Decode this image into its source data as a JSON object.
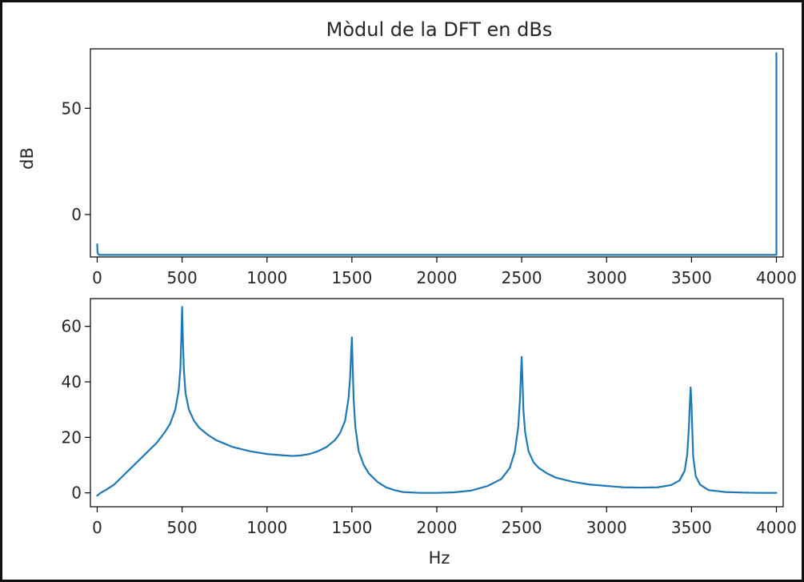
{
  "colors": {
    "line": "#1f77b4",
    "background": "#ffffff",
    "frame": "#000000"
  },
  "chart_data": [
    {
      "type": "line",
      "title": "Mòdul de la DFT en dBs",
      "xlabel": "",
      "ylabel": "dB",
      "xlim": [
        -40,
        4040
      ],
      "ylim": [
        -20,
        78
      ],
      "xticks": [
        0,
        500,
        1000,
        1500,
        2000,
        2500,
        3000,
        3500,
        4000
      ],
      "yticks": [
        0,
        50
      ],
      "grid": false,
      "series": [
        {
          "x": [
            0,
            2,
            10,
            4000,
            4000
          ],
          "y": [
            -14,
            -18,
            -19,
            -19,
            76
          ]
        }
      ]
    },
    {
      "type": "line",
      "title": "",
      "xlabel": "Hz",
      "ylabel": "",
      "xlim": [
        -40,
        4040
      ],
      "ylim": [
        -5,
        70
      ],
      "xticks": [
        0,
        500,
        1000,
        1500,
        2000,
        2500,
        3000,
        3500,
        4000
      ],
      "yticks": [
        0,
        20,
        40,
        60
      ],
      "grid": false,
      "series": [
        {
          "x": [
            0,
            20,
            50,
            100,
            150,
            200,
            250,
            300,
            350,
            400,
            430,
            460,
            480,
            490,
            495,
            500,
            505,
            510,
            520,
            540,
            570,
            600,
            650,
            700,
            800,
            900,
            1000,
            1100,
            1150,
            1200,
            1250,
            1300,
            1350,
            1400,
            1430,
            1460,
            1480,
            1490,
            1495,
            1500,
            1505,
            1510,
            1520,
            1540,
            1570,
            1600,
            1650,
            1700,
            1750,
            1800,
            1900,
            2000,
            2100,
            2200,
            2300,
            2380,
            2430,
            2460,
            2480,
            2490,
            2495,
            2500,
            2505,
            2510,
            2520,
            2540,
            2570,
            2600,
            2650,
            2700,
            2800,
            2900,
            3000,
            3100,
            3200,
            3300,
            3380,
            3430,
            3460,
            3475,
            3485,
            3490,
            3495,
            3500,
            3505,
            3510,
            3525,
            3550,
            3600,
            3700,
            3800,
            3900,
            4000
          ],
          "y": [
            -1,
            0,
            1,
            3,
            6,
            9,
            12,
            15,
            18,
            22,
            25,
            30,
            37,
            45,
            55,
            67,
            55,
            45,
            36,
            30,
            26,
            23.5,
            21,
            19,
            16.5,
            15,
            14,
            13.5,
            13.3,
            13.5,
            14,
            15,
            16.5,
            19,
            21.5,
            26,
            34,
            42,
            50,
            56,
            45,
            34,
            24,
            15,
            10,
            7,
            4,
            2,
            1,
            0.3,
            0,
            0,
            0.2,
            0.8,
            2.5,
            5,
            9,
            15,
            24,
            34,
            42,
            49,
            40,
            30,
            22,
            15,
            11,
            9,
            7,
            5.5,
            4,
            3,
            2.5,
            2,
            1.9,
            2,
            2.8,
            4.5,
            8,
            14,
            24,
            32,
            38,
            32,
            22,
            13,
            6,
            3,
            1,
            0.3,
            0.1,
            0,
            0
          ]
        }
      ]
    }
  ]
}
